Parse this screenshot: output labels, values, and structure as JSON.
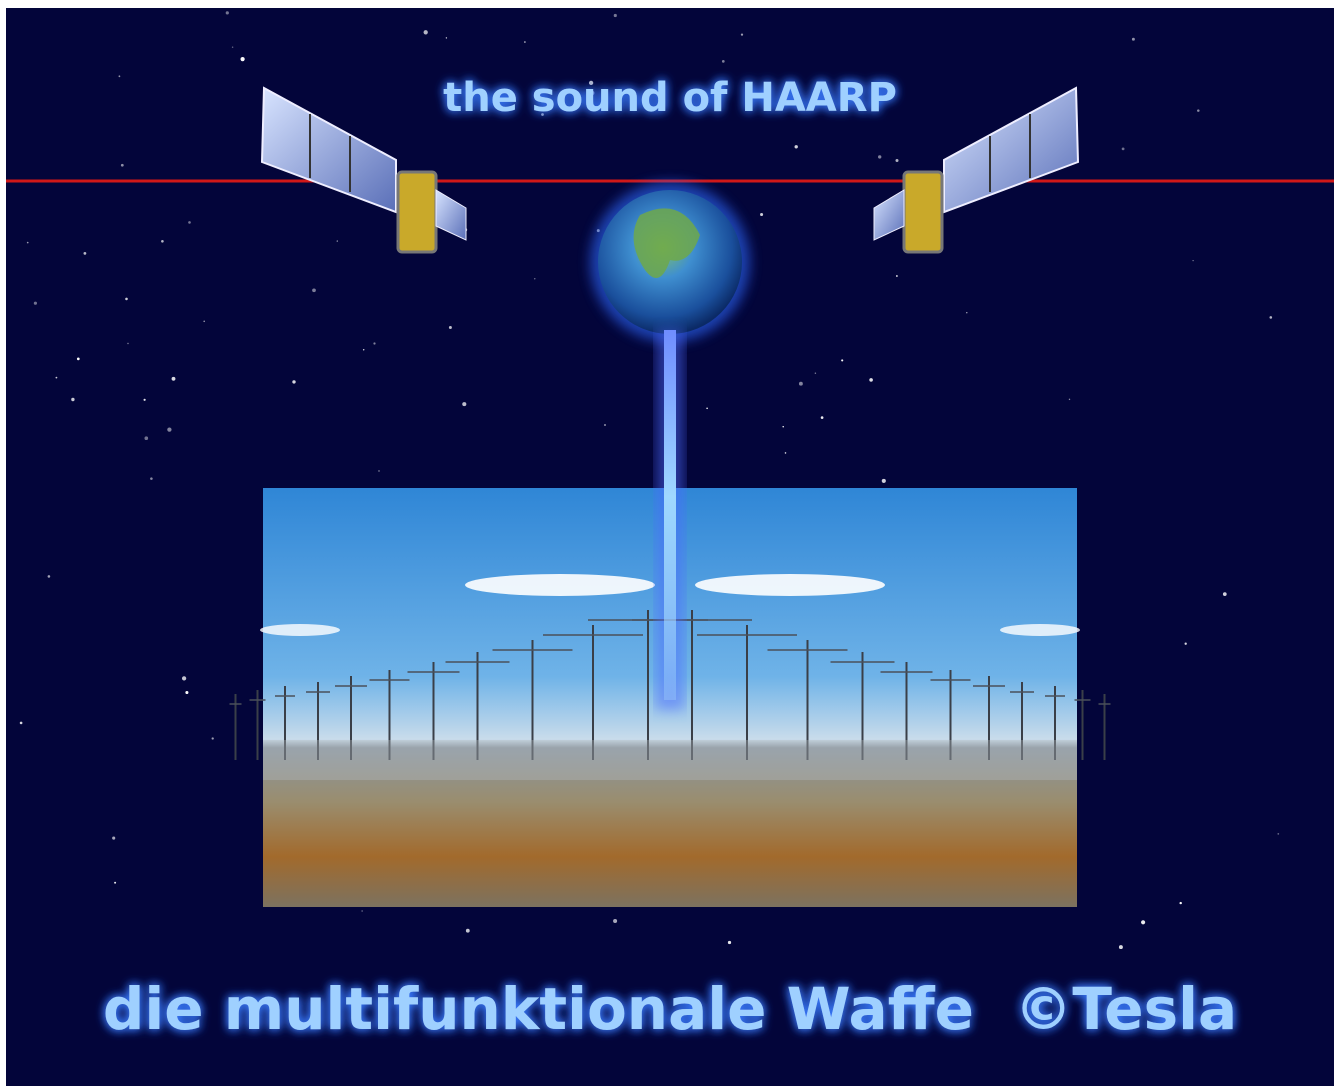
{
  "title": "the sound of HAARP",
  "caption": "die multifunktionale Waffe  ©Tesla"
}
